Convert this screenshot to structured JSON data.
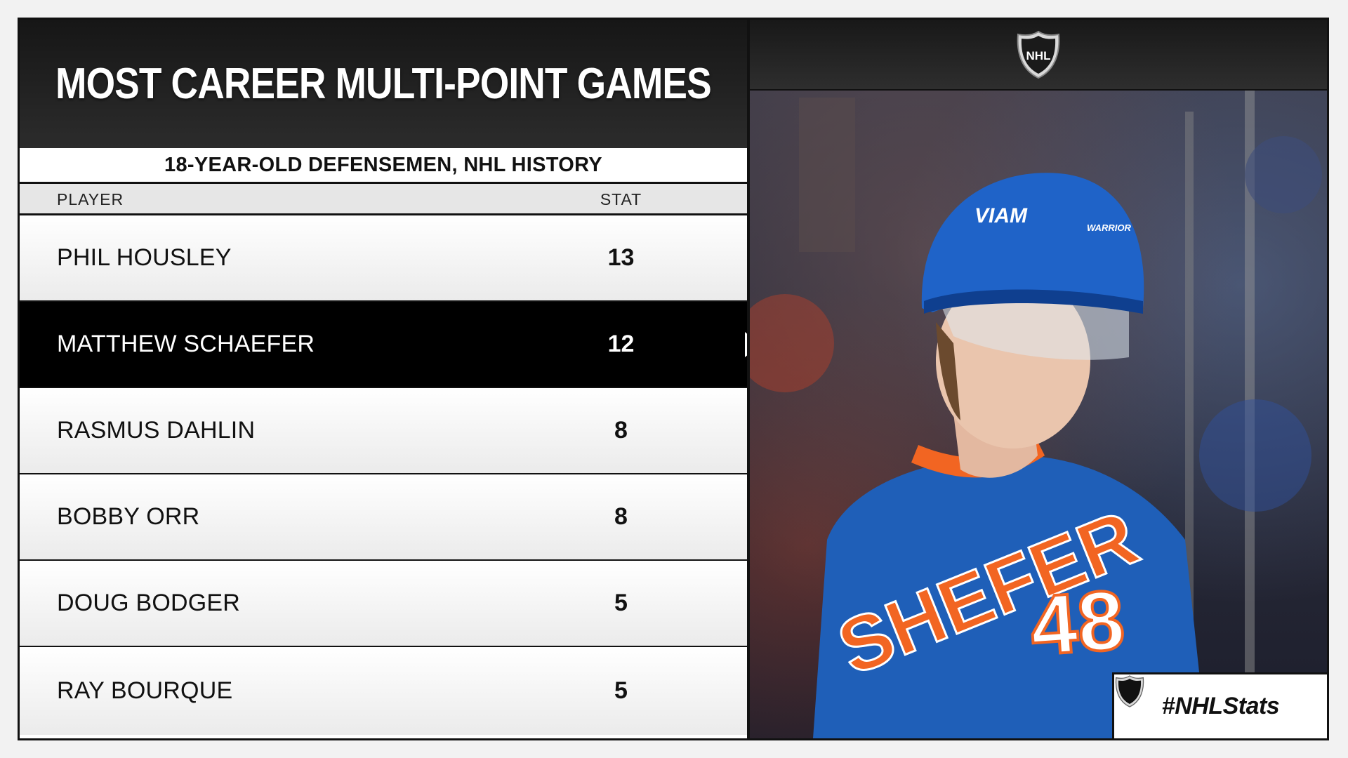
{
  "header": {
    "title": "MOST CAREER MULTI-POINT GAMES",
    "subtitle": "18-YEAR-OLD DEFENSEMEN, NHL HISTORY"
  },
  "table": {
    "columns": [
      "PLAYER",
      "STAT"
    ],
    "rows": [
      {
        "player": "PHIL HOUSLEY",
        "stat": "13"
      },
      {
        "player": "MATTHEW SCHAEFER",
        "stat": "12"
      },
      {
        "player": "RASMUS DAHLIN",
        "stat": "8"
      },
      {
        "player": "BOBBY ORR",
        "stat": "8"
      },
      {
        "player": "DOUG BODGER",
        "stat": "5"
      },
      {
        "player": "RAY BOURQUE",
        "stat": "5"
      }
    ],
    "highlighted_row": 1
  },
  "photo": {
    "helmet_sponsor": "VIAM",
    "helmet_brand": "WARRIOR",
    "jersey_name": "SHEFER",
    "jersey_number": "48"
  },
  "branding": {
    "logo_text": "NHL",
    "hashtag": "#NHLStats"
  },
  "colors": {
    "highlight_row": "#000000",
    "jersey_blue": "#1f5fb8",
    "jersey_orange": "#f26522"
  },
  "icons": [
    "nhl-shield-icon",
    "highlight-arrow-icon"
  ]
}
